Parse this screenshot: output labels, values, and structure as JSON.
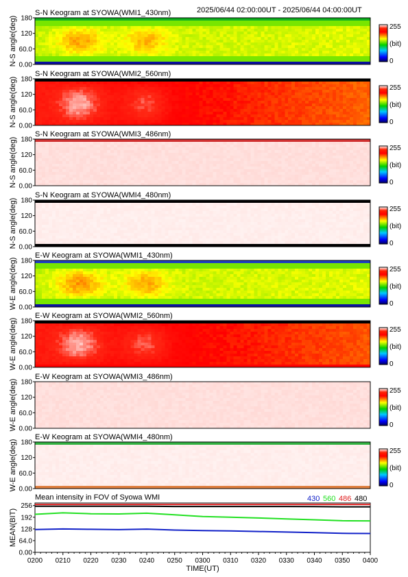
{
  "header": {
    "time_range": "2025/06/44 02:00:00UT - 2025/06/44 04:00:00UT"
  },
  "chart_data": [
    {
      "type": "heatmap",
      "title": "S-N Keogram at SYOWA(WMI1_430nm)",
      "ylabel": "N-S angle(deg)",
      "yticks": [
        "0.00",
        "60.0",
        "120",
        "180"
      ],
      "ylim": [
        0,
        180
      ],
      "colorbar": {
        "max": "255",
        "unit": "(bit)",
        "min": "0"
      },
      "field": {
        "base": 0.58,
        "peak": 0.1,
        "yrange": [
          30,
          150
        ],
        "fade": 0.02,
        "noise": 0.04,
        "top_band": "#10b020",
        "bottom_band": "#0a10a0"
      }
    },
    {
      "type": "heatmap",
      "title": "S-N Keogram at SYOWA(WMI2_560nm)",
      "ylabel": "N-S angle(deg)",
      "yticks": [
        "0.00",
        "60.0",
        "120",
        "180"
      ],
      "ylim": [
        0,
        180
      ],
      "colorbar": {
        "max": "255",
        "unit": "(bit)",
        "min": "0"
      },
      "field": {
        "base": 0.86,
        "peak": 0.12,
        "yrange": [
          0,
          165
        ],
        "fade": -0.13,
        "noise": 0.03,
        "top_band": "#000000",
        "bottom_band": null
      }
    },
    {
      "type": "heatmap",
      "title": "S-N Keogram at SYOWA(WMI3_486nm)",
      "ylabel": "N-S angle(deg)",
      "yticks": [
        "0.00",
        "60.0",
        "120",
        "180"
      ],
      "ylim": [
        0,
        180
      ],
      "colorbar": {
        "max": "255",
        "unit": "(bit)",
        "min": "0"
      },
      "field": {
        "base": 0.985,
        "peak": 0.0,
        "yrange": [
          0,
          180
        ],
        "fade": 0.0,
        "noise": 0.005,
        "top_band": "#d03030",
        "bottom_band": null
      }
    },
    {
      "type": "heatmap",
      "title": "S-N Keogram at SYOWA(WMI4_480nm)",
      "ylabel": "N-S angle(deg)",
      "yticks": [
        "0.00",
        "60.0",
        "120",
        "180"
      ],
      "ylim": [
        0,
        180
      ],
      "colorbar": {
        "max": "255",
        "unit": "(bit)",
        "min": "0"
      },
      "field": {
        "base": 0.992,
        "peak": 0.0,
        "yrange": [
          0,
          180
        ],
        "fade": 0.0,
        "noise": 0.004,
        "top_band": "#000000",
        "bottom_band": "#000000"
      }
    },
    {
      "type": "heatmap",
      "title": "E-W Keogram at SYOWA(WMI1_430nm)",
      "ylabel": "W-E angle(deg)",
      "yticks": [
        "0.00",
        "60.0",
        "120",
        "180"
      ],
      "ylim": [
        0,
        180
      ],
      "colorbar": {
        "max": "255",
        "unit": "(bit)",
        "min": "0"
      },
      "field": {
        "base": 0.58,
        "peak": 0.11,
        "yrange": [
          30,
          150
        ],
        "fade": 0.02,
        "noise": 0.04,
        "top_band": "#2040c0",
        "bottom_band": "#0a10a0"
      }
    },
    {
      "type": "heatmap",
      "title": "E-W Keogram at SYOWA(WMI2_560nm)",
      "ylabel": "W-E angle(deg)",
      "yticks": [
        "0.00",
        "60.0",
        "120",
        "180"
      ],
      "ylim": [
        0,
        180
      ],
      "colorbar": {
        "max": "255",
        "unit": "(bit)",
        "min": "0"
      },
      "field": {
        "base": 0.86,
        "peak": 0.12,
        "yrange": [
          10,
          170
        ],
        "fade": -0.12,
        "noise": 0.03,
        "top_band": "#000000",
        "bottom_band": null
      }
    },
    {
      "type": "heatmap",
      "title": "E-W Keogram at SYOWA(WMI3_486nm)",
      "ylabel": "W-E angle(deg)",
      "yticks": [
        "0.00",
        "60.0",
        "120",
        "180"
      ],
      "ylim": [
        0,
        180
      ],
      "colorbar": {
        "max": "255",
        "unit": "(bit)",
        "min": "0"
      },
      "field": {
        "base": 0.985,
        "peak": 0.0,
        "yrange": [
          0,
          180
        ],
        "fade": 0.0,
        "noise": 0.005,
        "top_band": null,
        "bottom_band": null
      }
    },
    {
      "type": "heatmap",
      "title": "E-W Keogram at SYOWA(WMI4_480nm)",
      "ylabel": "W-E angle(deg)",
      "yticks": [
        "0.00",
        "60.0",
        "120",
        "180"
      ],
      "ylim": [
        0,
        180
      ],
      "colorbar": {
        "max": "255",
        "unit": "(bit)",
        "min": "0"
      },
      "field": {
        "base": 0.992,
        "peak": 0.0,
        "yrange": [
          0,
          180
        ],
        "fade": 0.0,
        "noise": 0.004,
        "top_band": "#30b040",
        "bottom_band": "#e08040"
      }
    },
    {
      "type": "line",
      "title": "Mean intensity in FOV of Syowa WMI",
      "ylabel": "MEAN(BIT)",
      "xlabel": "TIME(UT)",
      "x": [
        "0200",
        "0210",
        "0220",
        "0230",
        "0240",
        "0250",
        "0300",
        "0310",
        "0320",
        "0330",
        "0340",
        "0350",
        "0400"
      ],
      "yticks": [
        "0.00",
        "64.0",
        "128",
        "192",
        "256"
      ],
      "ylim": [
        0,
        270
      ],
      "series": [
        {
          "name": "430",
          "color": "#1020c8",
          "values": [
            125,
            128,
            126,
            124,
            127,
            122,
            119,
            117,
            114,
            111,
            108,
            104,
            103
          ]
        },
        {
          "name": "560",
          "color": "#20e020",
          "values": [
            208,
            216,
            211,
            210,
            214,
            205,
            196,
            192,
            188,
            183,
            178,
            173,
            172
          ]
        },
        {
          "name": "486",
          "color": "#e02020",
          "values": [
            262,
            262,
            262,
            262,
            262,
            262,
            262,
            262,
            262,
            262,
            262,
            262,
            262
          ]
        },
        {
          "name": "480",
          "color": "#000000",
          "values": [
            252,
            252,
            252,
            252,
            252,
            251,
            251,
            251,
            251,
            251,
            250,
            249,
            249
          ]
        }
      ]
    }
  ]
}
